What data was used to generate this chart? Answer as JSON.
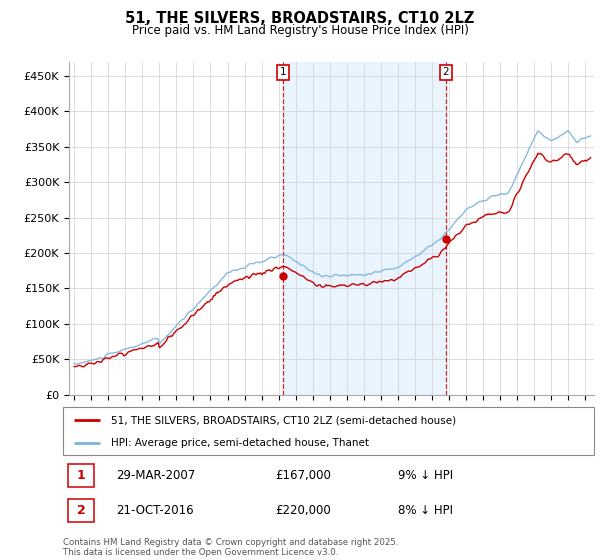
{
  "title": "51, THE SILVERS, BROADSTAIRS, CT10 2LZ",
  "subtitle": "Price paid vs. HM Land Registry's House Price Index (HPI)",
  "ylabel_ticks": [
    "£0",
    "£50K",
    "£100K",
    "£150K",
    "£200K",
    "£250K",
    "£300K",
    "£350K",
    "£400K",
    "£450K"
  ],
  "ytick_values": [
    0,
    50000,
    100000,
    150000,
    200000,
    250000,
    300000,
    350000,
    400000,
    450000
  ],
  "ylim": [
    0,
    470000
  ],
  "xlim_start": 1994.7,
  "xlim_end": 2025.5,
  "sale1_date_x": 2007.24,
  "sale2_date_x": 2016.81,
  "sale1_price": 167000,
  "sale2_price": 220000,
  "legend_line1": "51, THE SILVERS, BROADSTAIRS, CT10 2LZ (semi-detached house)",
  "legend_line2": "HPI: Average price, semi-detached house, Thanet",
  "annotation1_label": "1",
  "annotation1_date": "29-MAR-2007",
  "annotation1_price": "£167,000",
  "annotation1_hpi": "9% ↓ HPI",
  "annotation2_label": "2",
  "annotation2_date": "21-OCT-2016",
  "annotation2_price": "£220,000",
  "annotation2_hpi": "8% ↓ HPI",
  "footer": "Contains HM Land Registry data © Crown copyright and database right 2025.\nThis data is licensed under the Open Government Licence v3.0.",
  "line_color_price": "#cc0000",
  "line_color_hpi": "#7db3d8",
  "vline_color": "#cc0000",
  "background_shaded": "#ddeeff",
  "xtick_years": [
    1995,
    1996,
    1997,
    1998,
    1999,
    2000,
    2001,
    2002,
    2003,
    2004,
    2005,
    2006,
    2007,
    2008,
    2009,
    2010,
    2011,
    2012,
    2013,
    2014,
    2015,
    2016,
    2017,
    2018,
    2019,
    2020,
    2021,
    2022,
    2023,
    2024,
    2025
  ]
}
